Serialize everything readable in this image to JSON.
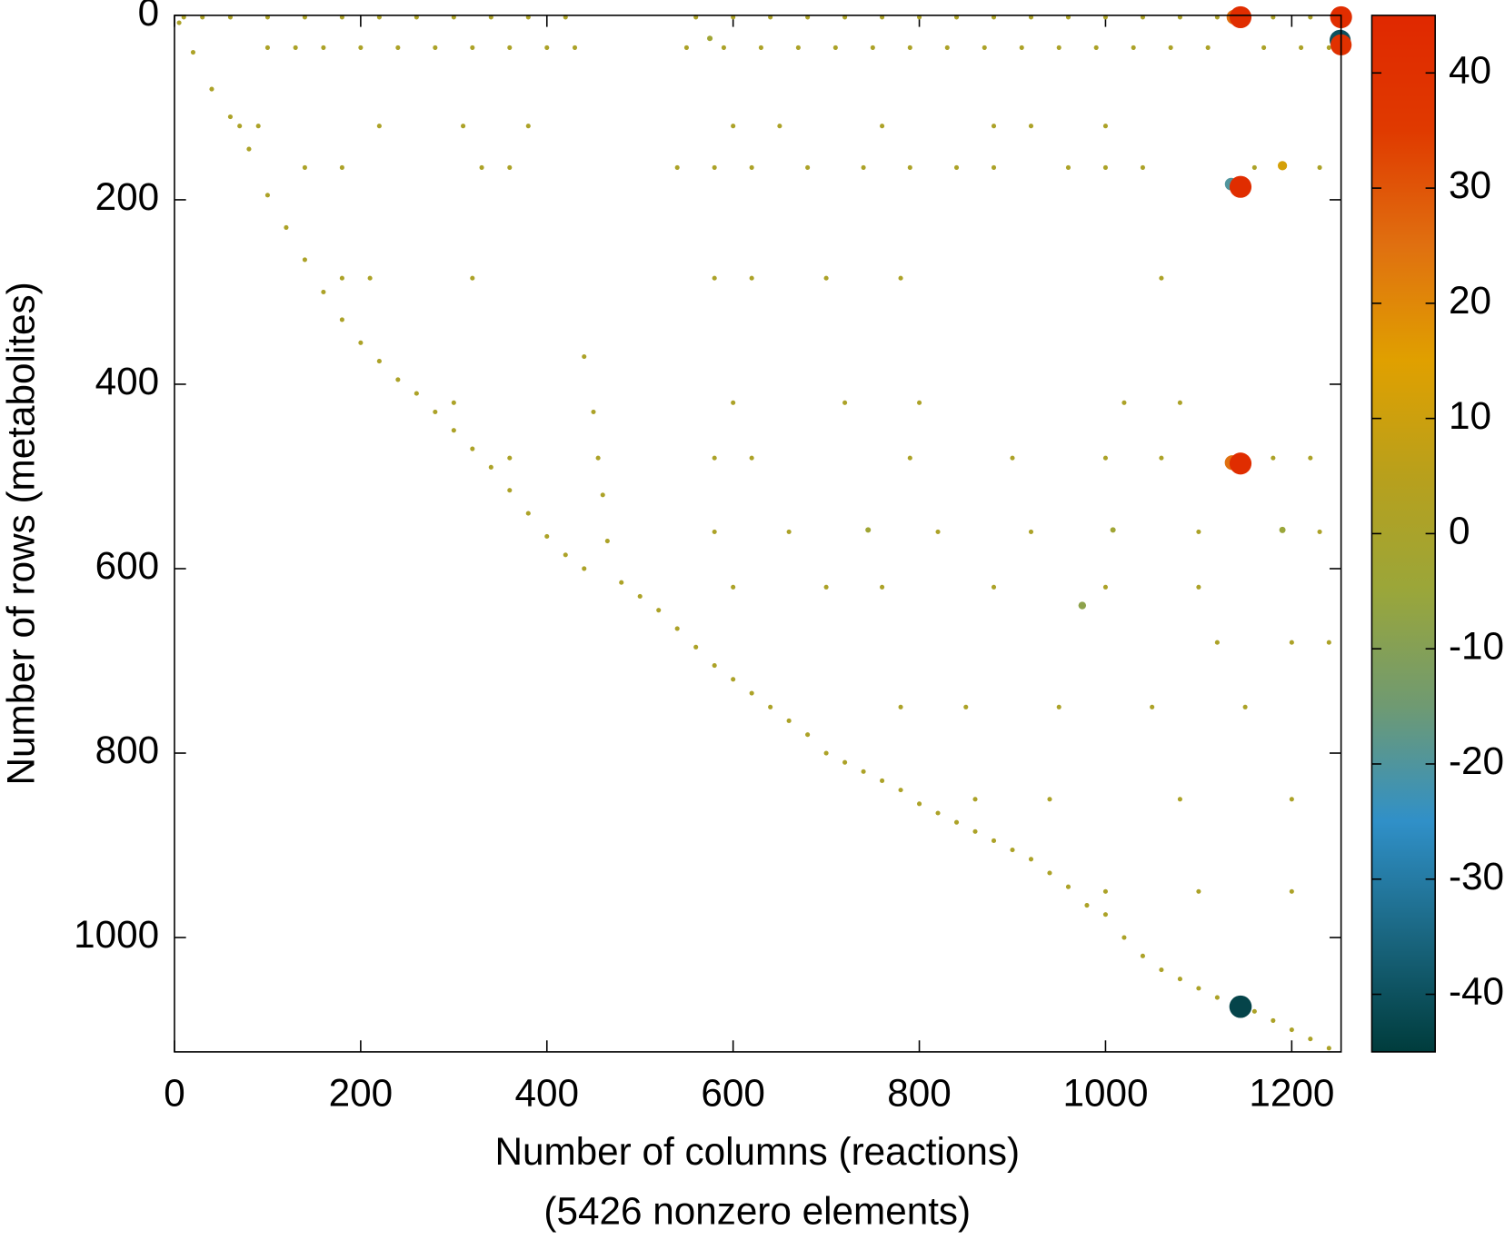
{
  "chart_data": {
    "type": "scatter",
    "xlabel": "Number of columns (reactions)",
    "annotation": "(5426 nonzero elements)",
    "ylabel": "Number of rows (metabolites)",
    "xlim": [
      0,
      1253
    ],
    "ylim": [
      0,
      1124
    ],
    "y_inverted": true,
    "xticks": [
      0,
      200,
      400,
      600,
      800,
      1000,
      1200
    ],
    "yticks": [
      0,
      200,
      400,
      600,
      800,
      1000
    ],
    "clim": [
      -45,
      45
    ],
    "cticks": [
      -40,
      -30,
      -20,
      -10,
      0,
      10,
      20,
      30,
      40
    ],
    "colormap": [
      "#003c3c",
      "#1a6680",
      "#3090c8",
      "#6f9a72",
      "#9aa63a",
      "#b8a01c",
      "#e0a000",
      "#e07010",
      "#e03a00",
      "#e02800"
    ],
    "grid": false,
    "groups": [
      {
        "value": 1,
        "x": [
          5,
          20,
          40,
          60,
          80,
          100,
          120,
          140,
          160,
          180,
          200,
          220,
          240,
          260,
          280,
          300,
          320,
          340,
          360,
          380,
          400,
          420,
          440,
          480,
          500,
          520,
          540,
          560,
          580,
          600,
          620,
          640,
          660,
          680,
          700,
          720,
          740,
          760,
          780,
          800,
          820,
          840,
          860,
          880,
          900,
          920,
          940,
          960,
          980,
          1000,
          1020,
          1040,
          1060,
          1080,
          1100,
          1120,
          1160,
          1180,
          1200,
          1220,
          1240
        ],
        "y": [
          8,
          40,
          80,
          110,
          145,
          195,
          230,
          265,
          300,
          330,
          355,
          375,
          395,
          410,
          430,
          450,
          470,
          490,
          515,
          540,
          565,
          585,
          600,
          615,
          630,
          645,
          665,
          685,
          705,
          720,
          735,
          750,
          765,
          780,
          800,
          810,
          820,
          830,
          840,
          855,
          865,
          875,
          885,
          895,
          905,
          915,
          930,
          945,
          965,
          975,
          1000,
          1020,
          1035,
          1045,
          1055,
          1065,
          1080,
          1090,
          1100,
          1110,
          1120
        ]
      },
      {
        "value": 1,
        "x": [
          10,
          30,
          60,
          100,
          140,
          180,
          220,
          260,
          300,
          340,
          380,
          420,
          560,
          600,
          640,
          680,
          720,
          760,
          800,
          840,
          880,
          920,
          960,
          1000,
          1040,
          1080,
          1120,
          1180,
          1220
        ],
        "y": [
          2,
          2,
          2,
          2,
          2,
          2,
          2,
          2,
          2,
          2,
          2,
          2,
          2,
          2,
          2,
          2,
          2,
          2,
          2,
          2,
          2,
          2,
          2,
          2,
          2,
          2,
          2,
          2,
          2
        ]
      },
      {
        "value": 1,
        "x": [
          100,
          130,
          160,
          200,
          240,
          280,
          320,
          360,
          400,
          430,
          550,
          590,
          630,
          670,
          710,
          750,
          790,
          830,
          870,
          910,
          950,
          990,
          1030,
          1070,
          1110,
          1170,
          1210,
          1240
        ],
        "y": [
          35,
          35,
          35,
          35,
          35,
          35,
          35,
          35,
          35,
          35,
          35,
          35,
          35,
          35,
          35,
          35,
          35,
          35,
          35,
          35,
          35,
          35,
          35,
          35,
          35,
          35,
          35,
          35
        ]
      },
      {
        "value": 1,
        "x": [
          140,
          180,
          330,
          360,
          540,
          580,
          620,
          680,
          740,
          790,
          840,
          880,
          960,
          1000,
          1040,
          1160,
          1230
        ],
        "y": [
          165,
          165,
          165,
          165,
          165,
          165,
          165,
          165,
          165,
          165,
          165,
          165,
          165,
          165,
          165,
          165,
          165
        ]
      },
      {
        "value": 1,
        "x": [
          70,
          90,
          220,
          310,
          380,
          600,
          650,
          760,
          880,
          920,
          1000
        ],
        "y": [
          120,
          120,
          120,
          120,
          120,
          120,
          120,
          120,
          120,
          120,
          120
        ]
      },
      {
        "value": 1,
        "x": [
          180,
          210,
          320,
          580,
          620,
          700,
          780,
          1060
        ],
        "y": [
          285,
          285,
          285,
          285,
          285,
          285,
          285,
          285
        ]
      },
      {
        "value": 1,
        "x": [
          300,
          600,
          720,
          800,
          1020,
          1080
        ],
        "y": [
          420,
          420,
          420,
          420,
          420,
          420
        ]
      },
      {
        "value": 1,
        "x": [
          360,
          580,
          620,
          790,
          900,
          1000,
          1060,
          1180,
          1220
        ],
        "y": [
          480,
          480,
          480,
          480,
          480,
          480,
          480,
          480,
          480
        ]
      },
      {
        "value": 1,
        "x": [
          580,
          660,
          820,
          920,
          1100,
          1230
        ],
        "y": [
          560,
          560,
          560,
          560,
          560,
          560
        ]
      },
      {
        "value": 1,
        "x": [
          600,
          700,
          760,
          880,
          1000,
          1100
        ],
        "y": [
          620,
          620,
          620,
          620,
          620,
          620
        ]
      },
      {
        "value": 1,
        "x": [
          1120,
          1200,
          1240
        ],
        "y": [
          680,
          680,
          680
        ]
      },
      {
        "value": 1,
        "x": [
          780,
          850,
          950,
          1050,
          1150
        ],
        "y": [
          750,
          750,
          750,
          750,
          750
        ]
      },
      {
        "value": 1,
        "x": [
          860,
          940,
          1080,
          1200
        ],
        "y": [
          850,
          850,
          850,
          850
        ]
      },
      {
        "value": 1,
        "x": [
          1000,
          1100,
          1200
        ],
        "y": [
          950,
          950,
          950
        ]
      },
      {
        "value": 1,
        "x": [
          440,
          450,
          455,
          460,
          465
        ],
        "y": [
          370,
          430,
          480,
          520,
          570
        ]
      },
      {
        "value": 12,
        "x": [
          1190
        ],
        "y": [
          163
        ]
      },
      {
        "value": -3,
        "x": [
          1008,
          745,
          575
        ],
        "y": [
          558,
          558,
          25
        ]
      },
      {
        "value": -5,
        "x": [
          1190
        ],
        "y": [
          558
        ]
      },
      {
        "value": -8,
        "x": [
          975
        ],
        "y": [
          640
        ]
      },
      {
        "value": 25,
        "x": [
          1138,
          1136
        ],
        "y": [
          2,
          485
        ]
      },
      {
        "value": -20,
        "x": [
          1135
        ],
        "y": [
          183
        ]
      },
      {
        "value": -40,
        "x": [
          1252
        ],
        "y": [
          27
        ]
      },
      {
        "value": 40,
        "x": [
          1253
        ],
        "y": [
          32
        ]
      },
      {
        "value": 42,
        "x": [
          1145,
          1253,
          1145,
          1145
        ],
        "y": [
          2,
          2,
          186,
          486
        ]
      },
      {
        "value": -43,
        "x": [
          1145
        ],
        "y": [
          1075
        ]
      }
    ]
  }
}
